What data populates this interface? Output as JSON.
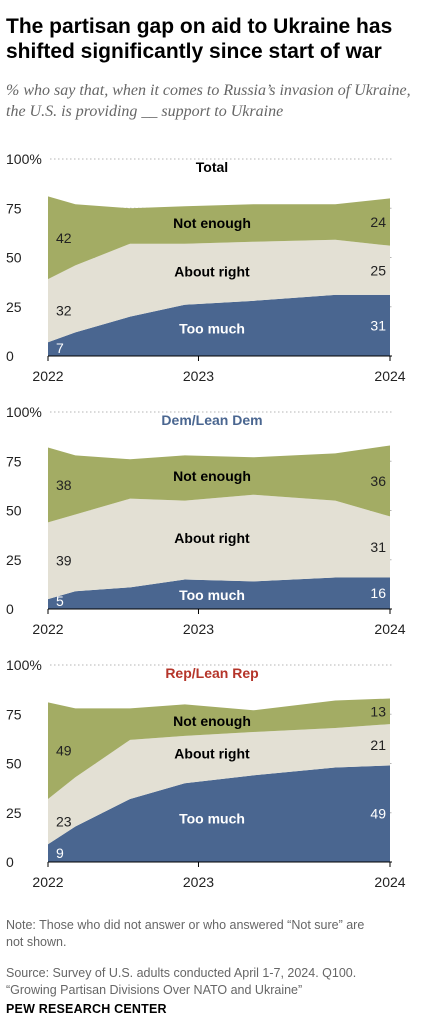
{
  "title": "The partisan gap on aid to Ukraine has shifted significantly since start of war",
  "subtitle": "% who say that, when it comes to Russia’s invasion of Ukraine, the U.S. is providing __ support to Ukraine",
  "colors": {
    "too_much": "#4a6690",
    "about_right": "#e3e0d4",
    "not_enough": "#a3ac64",
    "panel_title_total": "#000000",
    "panel_title_dem": "#4a6690",
    "panel_title_rep": "#b5352a",
    "grid": "#b5b5b5",
    "axis": "#000000"
  },
  "chart_data": [
    {
      "type": "area",
      "title": "Total",
      "x": [
        "2022-03",
        "2022-05",
        "2022-09",
        "2023-01",
        "2023-06",
        "2023-12",
        "2024-04"
      ],
      "x_tick_labels": [
        "2022",
        "2023",
        "2024"
      ],
      "y_tick_labels": [
        "100%",
        "75",
        "50",
        "25",
        "0"
      ],
      "ylim": [
        0,
        100
      ],
      "series": [
        {
          "name": "Too much",
          "values": [
            7,
            12,
            20,
            26,
            28,
            31,
            31
          ]
        },
        {
          "name": "About right",
          "values": [
            32,
            34,
            37,
            31,
            30,
            28,
            25
          ]
        },
        {
          "name": "Not enough",
          "values": [
            42,
            31,
            18,
            19,
            19,
            18,
            24
          ]
        }
      ],
      "data_labels": {
        "too_much_first": "7",
        "too_much_last": "31",
        "about_right_first": "32",
        "about_right_last": "25",
        "not_enough_first": "42",
        "not_enough_last": "24"
      }
    },
    {
      "type": "area",
      "title": "Dem/Lean Dem",
      "x": [
        "2022-03",
        "2022-05",
        "2022-09",
        "2023-01",
        "2023-06",
        "2023-12",
        "2024-04"
      ],
      "x_tick_labels": [
        "2022",
        "2023",
        "2024"
      ],
      "y_tick_labels": [
        "100%",
        "75",
        "50",
        "25",
        "0"
      ],
      "ylim": [
        0,
        100
      ],
      "series": [
        {
          "name": "Too much",
          "values": [
            5,
            9,
            11,
            15,
            14,
            16,
            16
          ]
        },
        {
          "name": "About right",
          "values": [
            39,
            39,
            45,
            40,
            44,
            39,
            31
          ]
        },
        {
          "name": "Not enough",
          "values": [
            38,
            30,
            20,
            23,
            19,
            24,
            36
          ]
        }
      ],
      "data_labels": {
        "too_much_first": "5",
        "too_much_last": "16",
        "about_right_first": "39",
        "about_right_last": "31",
        "not_enough_first": "38",
        "not_enough_last": "36"
      }
    },
    {
      "type": "area",
      "title": "Rep/Lean Rep",
      "x": [
        "2022-03",
        "2022-05",
        "2022-09",
        "2023-01",
        "2023-06",
        "2023-12",
        "2024-04"
      ],
      "x_tick_labels": [
        "2022",
        "2023",
        "2024"
      ],
      "y_tick_labels": [
        "100%",
        "75",
        "50",
        "25",
        "0"
      ],
      "ylim": [
        0,
        100
      ],
      "series": [
        {
          "name": "Too much",
          "values": [
            9,
            18,
            32,
            40,
            44,
            48,
            49
          ]
        },
        {
          "name": "About right",
          "values": [
            23,
            25,
            30,
            24,
            22,
            20,
            21
          ]
        },
        {
          "name": "Not enough",
          "values": [
            49,
            35,
            16,
            16,
            11,
            14,
            13
          ]
        }
      ],
      "data_labels": {
        "too_much_first": "9",
        "too_much_last": "49",
        "about_right_first": "23",
        "about_right_last": "21",
        "not_enough_first": "49",
        "not_enough_last": "13"
      }
    }
  ],
  "note_line1": "Note: Those who did not answer or who answered “Not sure” are",
  "note_line2": "not shown.",
  "source_line1": "Source: Survey of U.S. adults conducted April 1-7, 2024. Q100.",
  "source_line2": "“Growing Partisan Divisions Over NATO and Ukraine”",
  "logo": "PEW RESEARCH CENTER"
}
